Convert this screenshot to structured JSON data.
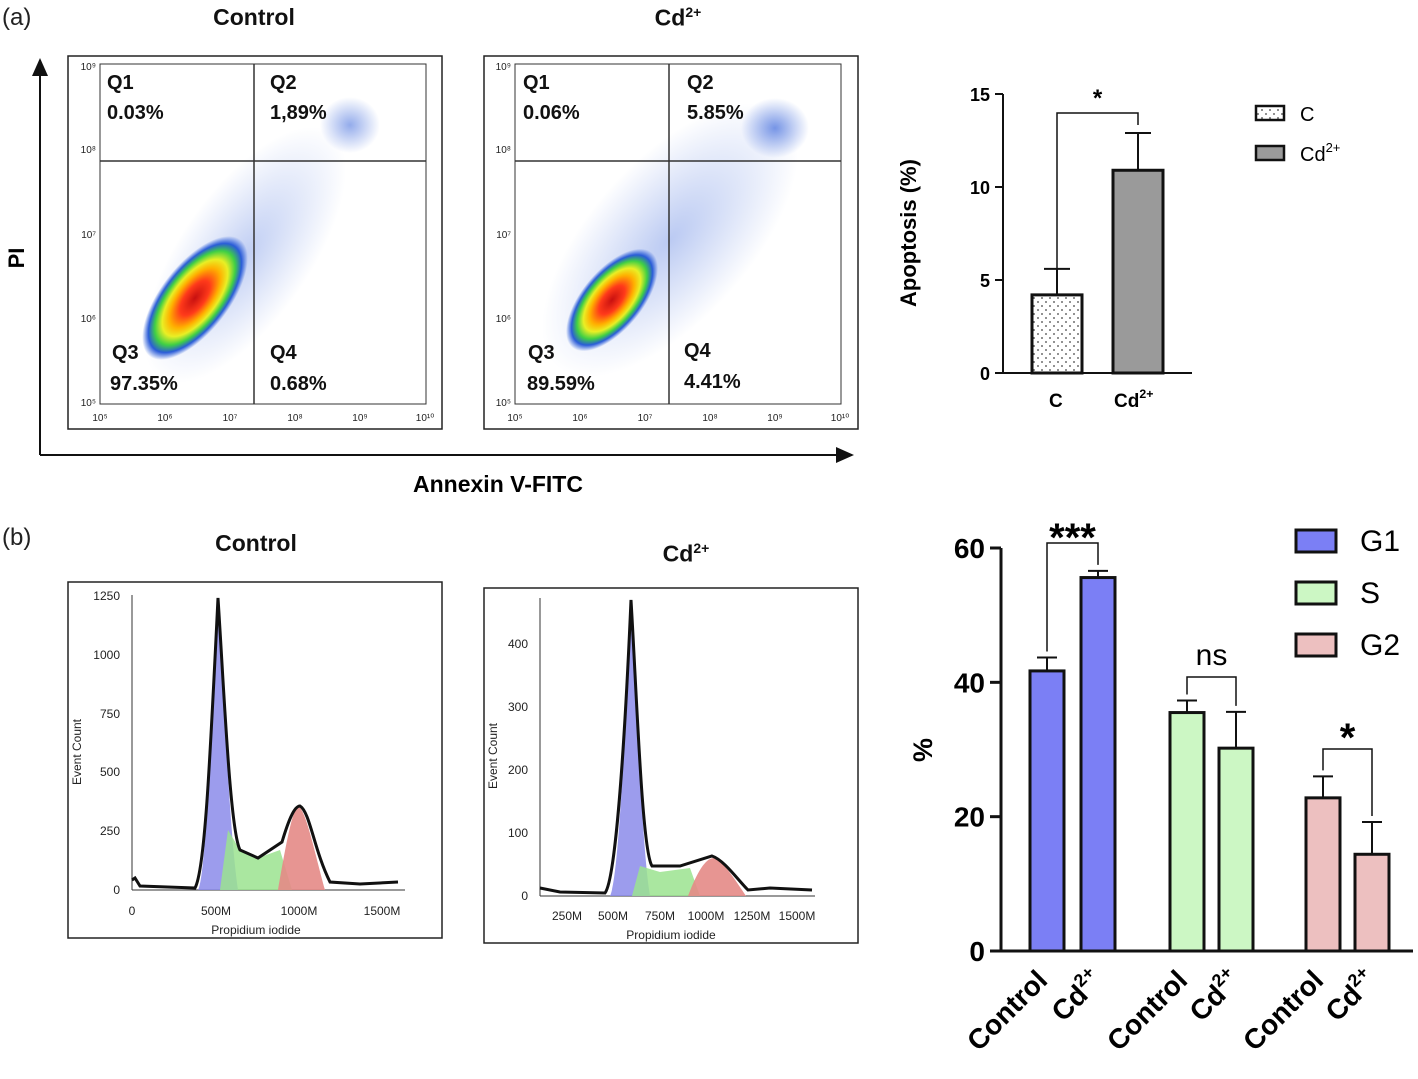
{
  "panels": {
    "a": {
      "label": "(a)"
    },
    "b": {
      "label": "(b)"
    }
  },
  "flow": {
    "y_axis_label": "PI",
    "x_axis_label": "Annexin V-FITC",
    "x_ticks": [
      "10⁵",
      "10⁶",
      "10⁷",
      "10⁸",
      "10⁹",
      "10¹⁰"
    ],
    "y_ticks": [
      "10⁵",
      "10⁶",
      "10⁷",
      "10⁸",
      "10⁹"
    ],
    "plots": [
      {
        "title": "Control",
        "title_sup": "",
        "quadrants": {
          "q1_name": "Q1",
          "q1": "0.03%",
          "q2_name": "Q2",
          "q2": "1,89%",
          "q3_name": "Q3",
          "q3": "97.35%",
          "q4_name": "Q4",
          "q4": "0.68%"
        }
      },
      {
        "title": "Cd",
        "title_sup": "2+",
        "quadrants": {
          "q1_name": "Q1",
          "q1": "0.06%",
          "q2_name": "Q2",
          "q2": "5.85%",
          "q3_name": "Q3",
          "q3": "89.59%",
          "q4_name": "Q4",
          "q4": "4.41%"
        }
      }
    ]
  },
  "histograms": {
    "x_label": "Propidium iodide",
    "y_label": "Event Count",
    "plots": [
      {
        "title": "Control",
        "title_sup": "",
        "y_ticks": [
          "0",
          "250",
          "500",
          "750",
          "1000",
          "1250"
        ],
        "x_ticks": [
          "0",
          "500M",
          "1000M",
          "1500M"
        ]
      },
      {
        "title": "Cd",
        "title_sup": "2+",
        "y_ticks": [
          "0",
          "100",
          "200",
          "300",
          "400"
        ],
        "x_ticks": [
          "250M",
          "500M",
          "750M",
          "1000M",
          "1250M",
          "1500M"
        ]
      }
    ]
  },
  "chart_data": [
    {
      "type": "bar",
      "title": "",
      "ylabel": "Apoptosis (%)",
      "xlabel": "",
      "categories": [
        "C",
        "Cd2+"
      ],
      "values": [
        4.2,
        10.9
      ],
      "errors": [
        1.4,
        2.0
      ],
      "ylim": [
        0,
        15
      ],
      "yticks": [
        "0",
        "5",
        "10",
        "15"
      ],
      "xtick_labels": [
        {
          "base": "C",
          "sup": ""
        },
        {
          "base": "Cd",
          "sup": "2+"
        }
      ],
      "significance": "*",
      "legend": [
        {
          "base": "C",
          "sup": "",
          "fill": "dots"
        },
        {
          "base": "Cd",
          "sup": "2+",
          "fill": "#9a9a9a"
        }
      ],
      "colors": {
        "C": "#ffffff",
        "Cd2+": "#9a9a9a"
      }
    },
    {
      "type": "bar",
      "title": "",
      "ylabel": "%",
      "xlabel": "",
      "groups": [
        "G1",
        "S",
        "G2"
      ],
      "categories": [
        "Control",
        "Cd2+"
      ],
      "series": [
        {
          "name": "G1",
          "values": [
            41.7,
            55.6
          ],
          "errors": [
            2.0,
            1.0
          ],
          "color": "#7b7ff5"
        },
        {
          "name": "S",
          "values": [
            35.5,
            30.2
          ],
          "errors": [
            1.8,
            5.4
          ],
          "color": "#ccf7c4"
        },
        {
          "name": "G2",
          "values": [
            22.8,
            14.4
          ],
          "errors": [
            3.2,
            4.8
          ],
          "color": "#edc0c0"
        }
      ],
      "ylim": [
        0,
        60
      ],
      "yticks": [
        "0",
        "20",
        "40",
        "60"
      ],
      "xtick_labels": [
        {
          "base": "Control",
          "sup": ""
        },
        {
          "base": "Cd",
          "sup": "2+"
        }
      ],
      "significance": [
        "***",
        "ns",
        "*"
      ]
    }
  ]
}
